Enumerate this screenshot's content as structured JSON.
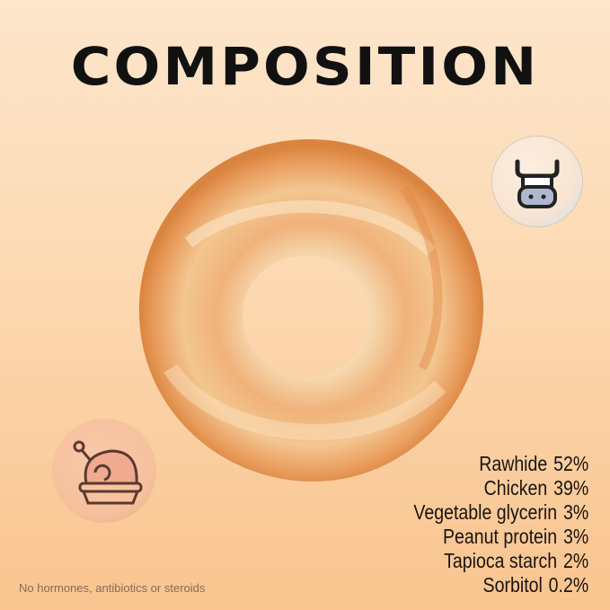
{
  "title": "COMPOSITION",
  "icons": {
    "top_right": "cow-icon",
    "bottom_left": "roast-chicken-icon"
  },
  "ingredients": [
    {
      "name": "Rawhide",
      "pct": "52%"
    },
    {
      "name": "Chicken",
      "pct": "39%"
    },
    {
      "name": "Vegetable glycerin",
      "pct": "3%"
    },
    {
      "name": "Peanut protein",
      "pct": "3%"
    },
    {
      "name": "Tapioca starch",
      "pct": "2%"
    },
    {
      "name": "Sorbitol",
      "pct": "0.2%"
    }
  ],
  "note": "No hormones, antibiotics or steroids"
}
